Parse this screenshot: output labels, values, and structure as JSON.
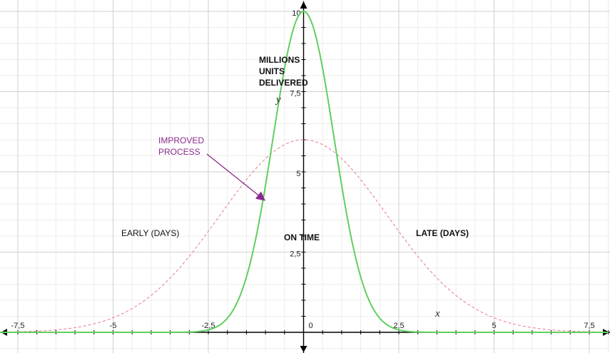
{
  "chart_data": {
    "type": "line",
    "title": "",
    "xlabel": "x",
    "ylabel": "y",
    "xlim": [
      -8,
      8
    ],
    "ylim": [
      -0.5,
      10.2
    ],
    "grid": true,
    "x_ticks": [
      -7.5,
      -5,
      -2.5,
      0,
      2.5,
      5,
      7.5
    ],
    "x_tick_labels": [
      "-7,5",
      "-5",
      "-2,5",
      "0",
      "2,5",
      "5",
      "7,5"
    ],
    "y_ticks": [
      2.5,
      5,
      7.5,
      10
    ],
    "y_tick_labels": [
      "2,5",
      "5",
      "7,5",
      "10"
    ],
    "series": [
      {
        "name": "",
        "style": "solid",
        "color": "#5fcf5f",
        "shape": "gaussian",
        "peak": 10,
        "center": 0,
        "sigma": 0.8
      },
      {
        "name": "",
        "style": "dashed",
        "color": "#e87a93",
        "shape": "gaussian",
        "peak": 6,
        "center": 0,
        "sigma": 2.2
      }
    ],
    "annotations": {
      "ylabel_text": [
        "MILLIONS",
        "UNITS",
        "DELIVERED"
      ],
      "early": "EARLY (DAYS)",
      "on_time": "ON TIME",
      "late": "LATE  (DAYS)",
      "improved": [
        "IMPROVED",
        "PROCESS"
      ]
    }
  }
}
